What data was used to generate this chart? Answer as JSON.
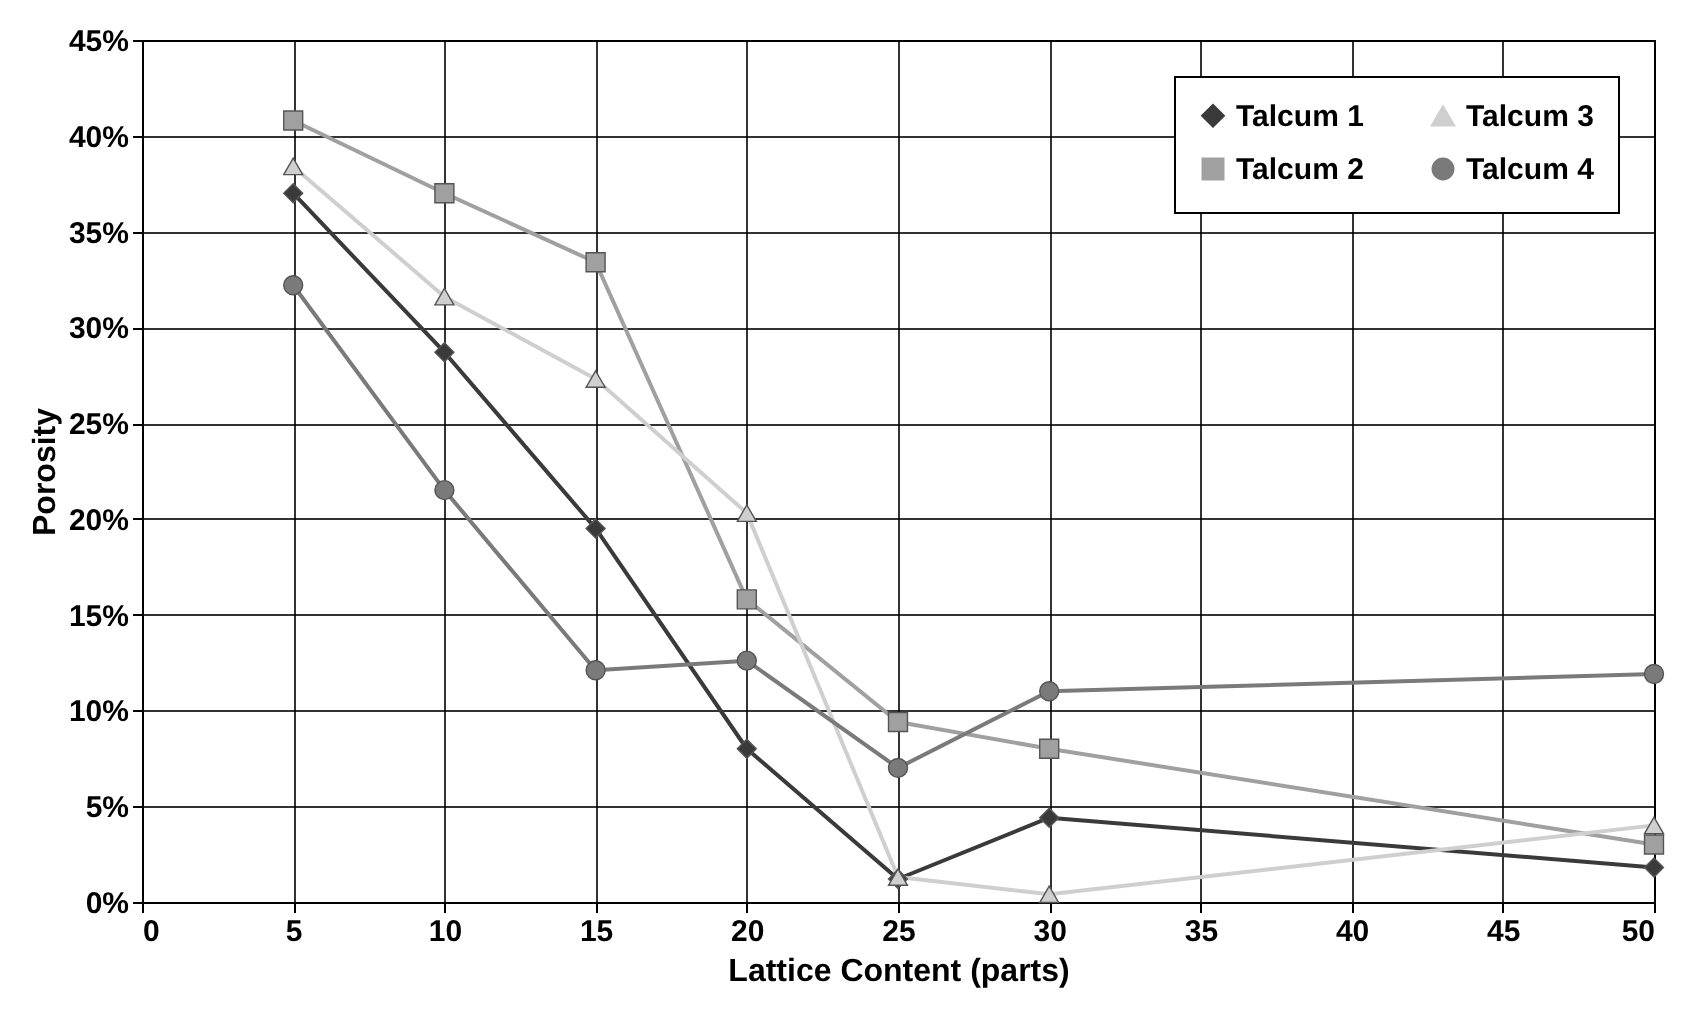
{
  "chart_data": {
    "type": "line",
    "xlabel": "Lattice Content (parts)",
    "ylabel": "Porosity",
    "x": [
      5,
      10,
      15,
      20,
      25,
      30,
      50
    ],
    "series": [
      {
        "name": "Talcum 1",
        "color": "#3a3a3a",
        "marker": "diamond",
        "values": [
          37.0,
          28.7,
          19.5,
          8.0,
          1.2,
          4.4,
          1.8
        ]
      },
      {
        "name": "Talcum 2",
        "color": "#a0a0a0",
        "marker": "square",
        "values": [
          40.8,
          37.0,
          33.4,
          15.8,
          9.4,
          8.0,
          3.0
        ]
      },
      {
        "name": "Talcum 3",
        "color": "#cfcfcf",
        "marker": "triangle",
        "values": [
          38.4,
          31.6,
          27.3,
          20.3,
          1.3,
          0.4,
          4.0
        ]
      },
      {
        "name": "Talcum 4",
        "color": "#7a7a7a",
        "marker": "circle",
        "values": [
          32.2,
          21.5,
          12.1,
          12.6,
          7.0,
          11.0,
          11.9
        ]
      }
    ],
    "xlim": [
      0,
      50
    ],
    "xticks": [
      0,
      5,
      10,
      15,
      20,
      25,
      30,
      35,
      40,
      45,
      50
    ],
    "ylim": [
      0,
      45
    ],
    "yticks": [
      {
        "value": 0,
        "label": "0%"
      },
      {
        "value": 5,
        "label": "5%"
      },
      {
        "value": 10,
        "label": "10%"
      },
      {
        "value": 15,
        "label": "15%"
      },
      {
        "value": 20,
        "label": "20%"
      },
      {
        "value": 25,
        "label": "25%"
      },
      {
        "value": 30,
        "label": "30%"
      },
      {
        "value": 35,
        "label": "35%"
      },
      {
        "value": 40,
        "label": "40%"
      },
      {
        "value": 45,
        "label": "45%"
      }
    ],
    "grid": true,
    "legend": "top right"
  }
}
